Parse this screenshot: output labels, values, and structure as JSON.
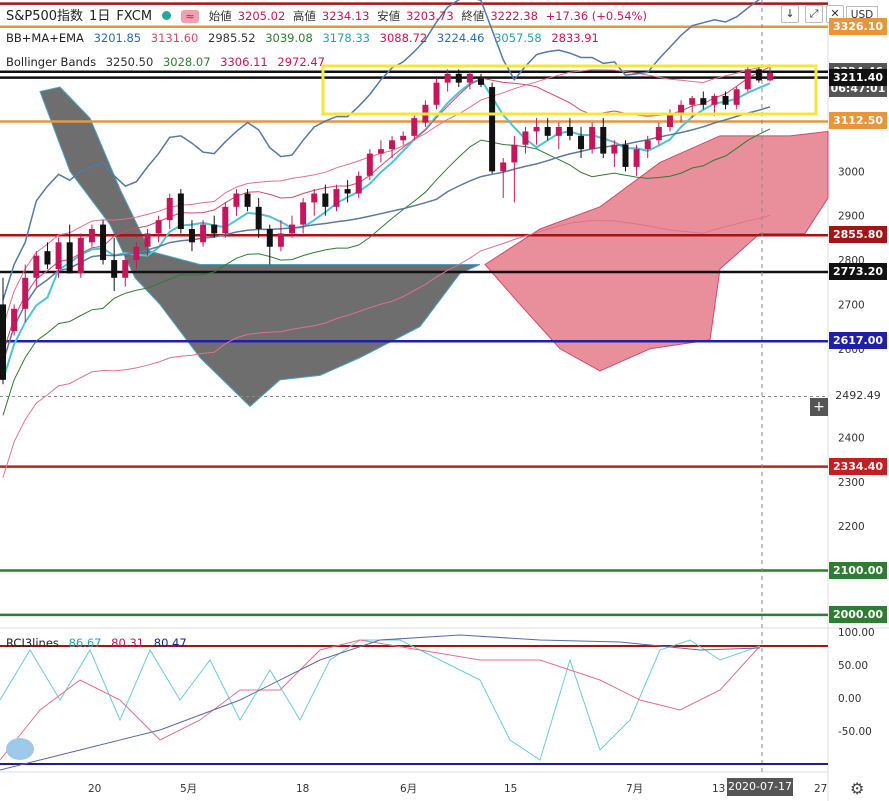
{
  "header": {
    "symbol": "S&P500指数",
    "interval": "1日",
    "source": "FXCM",
    "open_label": "始値",
    "open": "3205.02",
    "high_label": "高値",
    "high": "3234.13",
    "low_label": "安値",
    "low": "3203.73",
    "close_label": "終値",
    "close": "3222.38",
    "change": "+17.36 (+0.54%)",
    "currency": "USD"
  },
  "indicators": {
    "bbmaema": {
      "name": "BB+MA+EMA",
      "values": [
        "3201.85",
        "3131.60",
        "2985.52",
        "3039.08",
        "3178.33",
        "3088.72",
        "3224.46",
        "3057.58",
        "2833.91"
      ]
    },
    "bollinger": {
      "name": "Bollinger Bands",
      "values": [
        "3250.50",
        "3028.07",
        "3306.11",
        "2972.47"
      ]
    },
    "rci": {
      "name": "RCI3lines",
      "values": [
        "86.67",
        "80.31",
        "80.47"
      ]
    }
  },
  "price_labels": [
    {
      "text": "3326.10",
      "price": 3326.1,
      "color": "#e8963c"
    },
    {
      "text": "3224.46",
      "price": 3224.46,
      "color": "#555555"
    },
    {
      "text": "06:47:01",
      "price": 3185,
      "color": "#555555"
    },
    {
      "text": "3211.40",
      "price": 3211.4,
      "color": "#111111"
    },
    {
      "text": "3112.50",
      "price": 3112.5,
      "color": "#e8963c"
    },
    {
      "text": "2855.80",
      "price": 2855.8,
      "color": "#a31515"
    },
    {
      "text": "2773.20",
      "price": 2773.2,
      "color": "#111111"
    },
    {
      "text": "2617.00",
      "price": 2617.0,
      "color": "#1f1fa8"
    },
    {
      "text": "2492.49",
      "price": 2492.49,
      "color": "#555555"
    },
    {
      "text": "2334.40",
      "price": 2334.4,
      "color": "#c41e1e"
    },
    {
      "text": "2100.00",
      "price": 2100.0,
      "color": "#2e7d32"
    },
    {
      "text": "2000.00",
      "price": 2000.0,
      "color": "#2e7d32"
    }
  ],
  "y_ticks": [
    3000,
    2900,
    2800,
    2700,
    2600,
    2400,
    2300,
    2200
  ],
  "rci_ticks": [
    "100.00",
    "50.00",
    "0.00",
    "-50.00"
  ],
  "x_ticks": [
    "20",
    "5月",
    "18",
    "6月",
    "15",
    "7月",
    "13",
    "27"
  ],
  "date_label": "2020-07-17",
  "toolbar": {
    "down": "↓",
    "expand": "⤢",
    "close": "✕"
  },
  "chart_data": {
    "type": "candlestick",
    "y_range": [
      2000,
      3326
    ],
    "horizontal_lines": [
      3326.1,
      3224.46,
      3211.4,
      3112.5,
      2855.8,
      2773.2,
      2617.0,
      2334.4,
      2100.0,
      2000.0
    ],
    "candles": [
      {
        "o": 2700,
        "h": 2760,
        "l": 2520,
        "c": 2530
      },
      {
        "o": 2640,
        "h": 2700,
        "l": 2630,
        "c": 2690
      },
      {
        "o": 2690,
        "h": 2790,
        "l": 2660,
        "c": 2760
      },
      {
        "o": 2760,
        "h": 2820,
        "l": 2740,
        "c": 2810
      },
      {
        "o": 2820,
        "h": 2840,
        "l": 2780,
        "c": 2790
      },
      {
        "o": 2780,
        "h": 2850,
        "l": 2760,
        "c": 2840
      },
      {
        "o": 2840,
        "h": 2880,
        "l": 2770,
        "c": 2770
      },
      {
        "o": 2770,
        "h": 2860,
        "l": 2760,
        "c": 2850
      },
      {
        "o": 2840,
        "h": 2880,
        "l": 2830,
        "c": 2870
      },
      {
        "o": 2880,
        "h": 2890,
        "l": 2790,
        "c": 2800
      },
      {
        "o": 2800,
        "h": 2850,
        "l": 2730,
        "c": 2760
      },
      {
        "o": 2760,
        "h": 2810,
        "l": 2740,
        "c": 2800
      },
      {
        "o": 2800,
        "h": 2840,
        "l": 2780,
        "c": 2830
      },
      {
        "o": 2830,
        "h": 2870,
        "l": 2810,
        "c": 2860
      },
      {
        "o": 2860,
        "h": 2900,
        "l": 2840,
        "c": 2890
      },
      {
        "o": 2890,
        "h": 2950,
        "l": 2870,
        "c": 2940
      },
      {
        "o": 2950,
        "h": 2960,
        "l": 2860,
        "c": 2870
      },
      {
        "o": 2870,
        "h": 2890,
        "l": 2820,
        "c": 2840
      },
      {
        "o": 2840,
        "h": 2890,
        "l": 2830,
        "c": 2880
      },
      {
        "o": 2880,
        "h": 2900,
        "l": 2850,
        "c": 2860
      },
      {
        "o": 2860,
        "h": 2930,
        "l": 2850,
        "c": 2920
      },
      {
        "o": 2920,
        "h": 2960,
        "l": 2900,
        "c": 2950
      },
      {
        "o": 2950,
        "h": 2960,
        "l": 2910,
        "c": 2920
      },
      {
        "o": 2920,
        "h": 2940,
        "l": 2850,
        "c": 2870
      },
      {
        "o": 2870,
        "h": 2880,
        "l": 2790,
        "c": 2830
      },
      {
        "o": 2830,
        "h": 2890,
        "l": 2820,
        "c": 2860
      },
      {
        "o": 2860,
        "h": 2900,
        "l": 2850,
        "c": 2880
      },
      {
        "o": 2880,
        "h": 2940,
        "l": 2860,
        "c": 2930
      },
      {
        "o": 2930,
        "h": 2960,
        "l": 2900,
        "c": 2950
      },
      {
        "o": 2950,
        "h": 2970,
        "l": 2900,
        "c": 2920
      },
      {
        "o": 2920,
        "h": 2970,
        "l": 2910,
        "c": 2960
      },
      {
        "o": 2960,
        "h": 2980,
        "l": 2930,
        "c": 2950
      },
      {
        "o": 2950,
        "h": 3000,
        "l": 2940,
        "c": 2990
      },
      {
        "o": 2990,
        "h": 3050,
        "l": 2980,
        "c": 3040
      },
      {
        "o": 3040,
        "h": 3070,
        "l": 3020,
        "c": 3050
      },
      {
        "o": 3050,
        "h": 3080,
        "l": 3030,
        "c": 3070
      },
      {
        "o": 3070,
        "h": 3090,
        "l": 3060,
        "c": 3080
      },
      {
        "o": 3080,
        "h": 3130,
        "l": 3070,
        "c": 3120
      },
      {
        "o": 3110,
        "h": 3160,
        "l": 3100,
        "c": 3150
      },
      {
        "o": 3150,
        "h": 3210,
        "l": 3140,
        "c": 3200
      },
      {
        "o": 3200,
        "h": 3230,
        "l": 3180,
        "c": 3220
      },
      {
        "o": 3220,
        "h": 3230,
        "l": 3190,
        "c": 3200
      },
      {
        "o": 3200,
        "h": 3225,
        "l": 3185,
        "c": 3220
      },
      {
        "o": 3210,
        "h": 3220,
        "l": 3190,
        "c": 3195
      },
      {
        "o": 3190,
        "h": 3200,
        "l": 2995,
        "c": 3000
      },
      {
        "o": 3000,
        "h": 3030,
        "l": 2940,
        "c": 3020
      },
      {
        "o": 3020,
        "h": 3080,
        "l": 2930,
        "c": 3060
      },
      {
        "o": 3060,
        "h": 3100,
        "l": 3040,
        "c": 3090
      },
      {
        "o": 3090,
        "h": 3120,
        "l": 3060,
        "c": 3100
      },
      {
        "o": 3100,
        "h": 3120,
        "l": 3070,
        "c": 3080
      },
      {
        "o": 3080,
        "h": 3110,
        "l": 3050,
        "c": 3100
      },
      {
        "o": 3100,
        "h": 3120,
        "l": 3070,
        "c": 3080
      },
      {
        "o": 3080,
        "h": 3100,
        "l": 3030,
        "c": 3050
      },
      {
        "o": 3050,
        "h": 3110,
        "l": 3040,
        "c": 3100
      },
      {
        "o": 3100,
        "h": 3120,
        "l": 3030,
        "c": 3040
      },
      {
        "o": 3040,
        "h": 3070,
        "l": 3010,
        "c": 3060
      },
      {
        "o": 3060,
        "h": 3070,
        "l": 3000,
        "c": 3010
      },
      {
        "o": 3010,
        "h": 3060,
        "l": 2990,
        "c": 3050
      },
      {
        "o": 3050,
        "h": 3080,
        "l": 3030,
        "c": 3070
      },
      {
        "o": 3070,
        "h": 3110,
        "l": 3060,
        "c": 3100
      },
      {
        "o": 3100,
        "h": 3140,
        "l": 3090,
        "c": 3130
      },
      {
        "o": 3130,
        "h": 3160,
        "l": 3110,
        "c": 3150
      },
      {
        "o": 3150,
        "h": 3170,
        "l": 3120,
        "c": 3165
      },
      {
        "o": 3165,
        "h": 3180,
        "l": 3140,
        "c": 3150
      },
      {
        "o": 3150,
        "h": 3175,
        "l": 3125,
        "c": 3170
      },
      {
        "o": 3170,
        "h": 3180,
        "l": 3140,
        "c": 3150
      },
      {
        "o": 3150,
        "h": 3190,
        "l": 3140,
        "c": 3185
      },
      {
        "o": 3185,
        "h": 3235,
        "l": 3180,
        "c": 3230
      },
      {
        "o": 3230,
        "h": 3235,
        "l": 3200,
        "c": 3205
      },
      {
        "o": 3205,
        "h": 3234,
        "l": 3203,
        "c": 3222
      }
    ],
    "rci_range": [
      -100,
      100
    ]
  }
}
